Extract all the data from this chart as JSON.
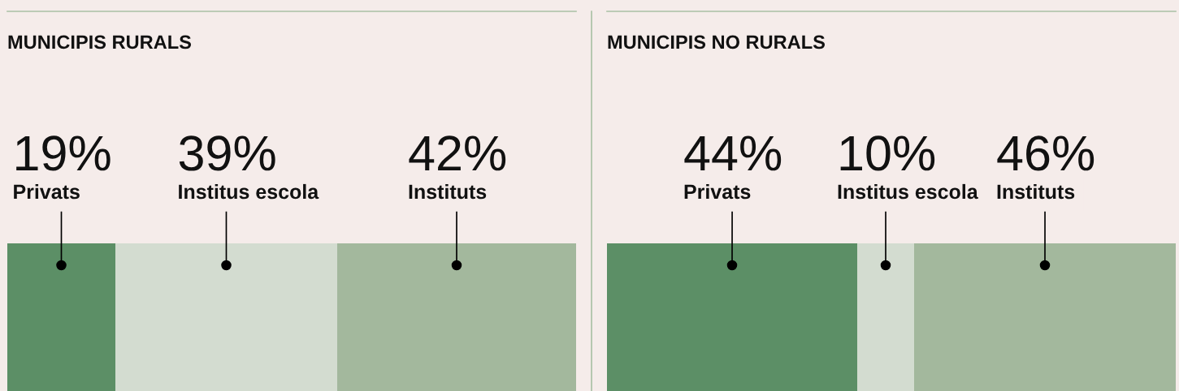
{
  "chart_data": [
    {
      "type": "bar",
      "title": "MUNICIPIS RURALS",
      "orientation": "horizontal",
      "stacked": true,
      "categories": [
        null
      ],
      "tick_labels": false,
      "legend": false,
      "series": [
        {
          "name": "Privats",
          "color": "#5c8f66",
          "values": [
            19
          ],
          "value_labels": [
            "19%"
          ]
        },
        {
          "name": "Institus escola",
          "color": "#d3dcd0",
          "values": [
            39
          ],
          "value_labels": [
            "39%"
          ]
        },
        {
          "name": "Instituts",
          "color": "#a3b89d",
          "values": [
            42
          ],
          "value_labels": [
            "42%"
          ]
        }
      ]
    },
    {
      "type": "bar",
      "title": "MUNICIPIS NO RURALS",
      "orientation": "horizontal",
      "stacked": true,
      "categories": [
        null
      ],
      "tick_labels": false,
      "legend": false,
      "series": [
        {
          "name": "Privats",
          "color": "#5c8f66",
          "values": [
            44
          ],
          "value_labels": [
            "44%"
          ]
        },
        {
          "name": "Institus escola",
          "color": "#d3dcd0",
          "values": [
            10
          ],
          "value_labels": [
            "10%"
          ]
        },
        {
          "name": "Instituts",
          "color": "#a3b89d",
          "values": [
            46
          ],
          "value_labels": [
            "46%"
          ]
        }
      ]
    }
  ]
}
